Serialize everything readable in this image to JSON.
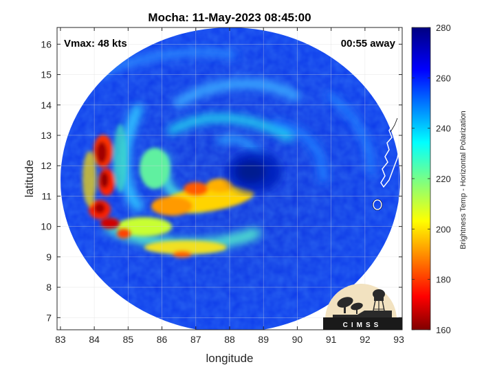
{
  "title": "Mocha: 11-May-2023 08:45:00",
  "annotations": {
    "vmax": "Vmax: 48 kts",
    "time_away": "00:55 away"
  },
  "axes": {
    "xlabel": "longitude",
    "ylabel": "latitude",
    "xlim": [
      82.9,
      93.1
    ],
    "ylim": [
      6.6,
      16.55
    ],
    "xticks": [
      "83",
      "84",
      "85",
      "86",
      "87",
      "88",
      "89",
      "90",
      "91",
      "92",
      "93"
    ],
    "yticks": [
      "7",
      "8",
      "9",
      "10",
      "11",
      "12",
      "13",
      "14",
      "15",
      "16"
    ],
    "grid": true
  },
  "colorbar": {
    "label": "Brightness Temp - Horizontal Polarization",
    "ticks": [
      "160",
      "180",
      "200",
      "220",
      "240",
      "260",
      "280"
    ],
    "range": [
      160,
      280
    ],
    "colormap": "jet"
  },
  "map": {
    "swath_center": [
      88.0,
      11.5
    ],
    "storm_eye": [
      88.6,
      11.7
    ],
    "coastline_color": "#ffffff"
  },
  "logo": {
    "text": "CIMSS"
  }
}
